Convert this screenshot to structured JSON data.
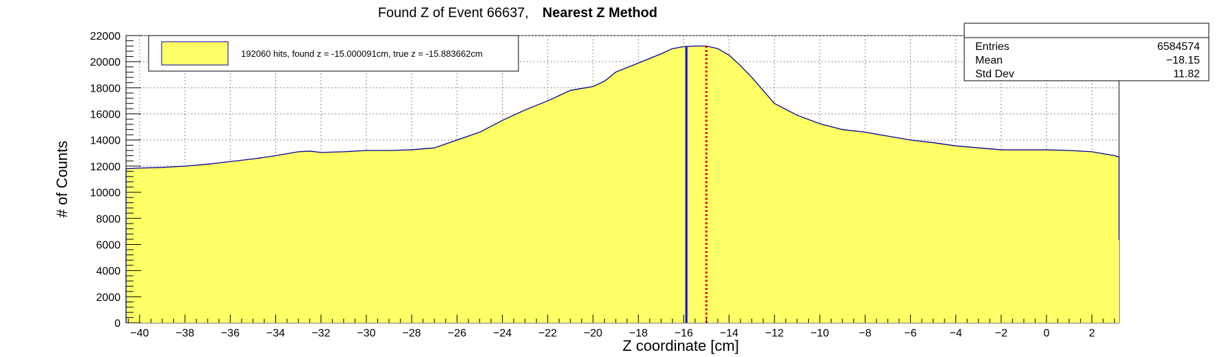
{
  "title": {
    "prefix": "Found Z of Event 66637,",
    "method": "Nearest Z Method"
  },
  "stats_box": {
    "rows": [
      {
        "label": "Entries",
        "value": "6584574"
      },
      {
        "label": "Mean",
        "value": "−18.15"
      },
      {
        "label": "Std Dev",
        "value": "11.82"
      }
    ]
  },
  "legend": {
    "text": "192060 hits, found z = -15.000091cm, true z = -15.883662cm",
    "fill_color": "#ffff66"
  },
  "chart_data": {
    "type": "area",
    "xlabel": "Z coordinate [cm]",
    "ylabel": "# of Counts",
    "xlim": [
      -40.6,
      3.2
    ],
    "ylim": [
      0,
      22000
    ],
    "x_ticks": [
      -40,
      -38,
      -36,
      -34,
      -32,
      -30,
      -28,
      -26,
      -24,
      -22,
      -20,
      -18,
      -16,
      -14,
      -12,
      -10,
      -8,
      -6,
      -4,
      -2,
      0,
      2
    ],
    "y_ticks": [
      0,
      2000,
      4000,
      6000,
      8000,
      10000,
      12000,
      14000,
      16000,
      18000,
      20000,
      22000
    ],
    "grid": true,
    "fill_color": "#ffff66",
    "line_color": "#000099",
    "series": [
      {
        "x": [
          -40.6,
          -40.0,
          -39.0,
          -38.0,
          -37.0,
          -36.0,
          -35.0,
          -34.0,
          -33.0,
          -32.5,
          -32.0,
          -31.0,
          -30.0,
          -29.0,
          -28.0,
          -27.0,
          -26.0,
          -25.0,
          -24.0,
          -23.0,
          -22.0,
          -21.0,
          -20.0,
          -19.5,
          -19.0,
          -18.0,
          -17.0,
          -16.5,
          -16.0,
          -15.5,
          -15.0,
          -14.5,
          -14.0,
          -13.5,
          -13.0,
          -12.5,
          -12.0,
          -11.0,
          -10.0,
          -9.0,
          -8.0,
          -7.0,
          -6.0,
          -5.0,
          -4.0,
          -3.0,
          -2.0,
          -1.0,
          0.0,
          1.0,
          2.0,
          3.0,
          3.2
        ],
        "y": [
          11800,
          11850,
          11900,
          12000,
          12150,
          12350,
          12550,
          12800,
          13100,
          13150,
          13050,
          13100,
          13200,
          13200,
          13250,
          13400,
          14000,
          14600,
          15500,
          16300,
          17000,
          17800,
          18100,
          18500,
          19200,
          19900,
          20600,
          21000,
          21150,
          21200,
          21200,
          21000,
          20500,
          19700,
          18800,
          17800,
          16800,
          15900,
          15250,
          14800,
          14600,
          14300,
          14000,
          13800,
          13550,
          13400,
          13250,
          13250,
          13250,
          13200,
          13100,
          12800,
          12700
        ]
      }
    ],
    "markers": [
      {
        "name": "true z",
        "x": -15.883662,
        "color": "#0000ee",
        "style": "solid"
      },
      {
        "name": "found z",
        "x": -15.000091,
        "color": "#ee0000",
        "style": "dotted"
      }
    ]
  }
}
